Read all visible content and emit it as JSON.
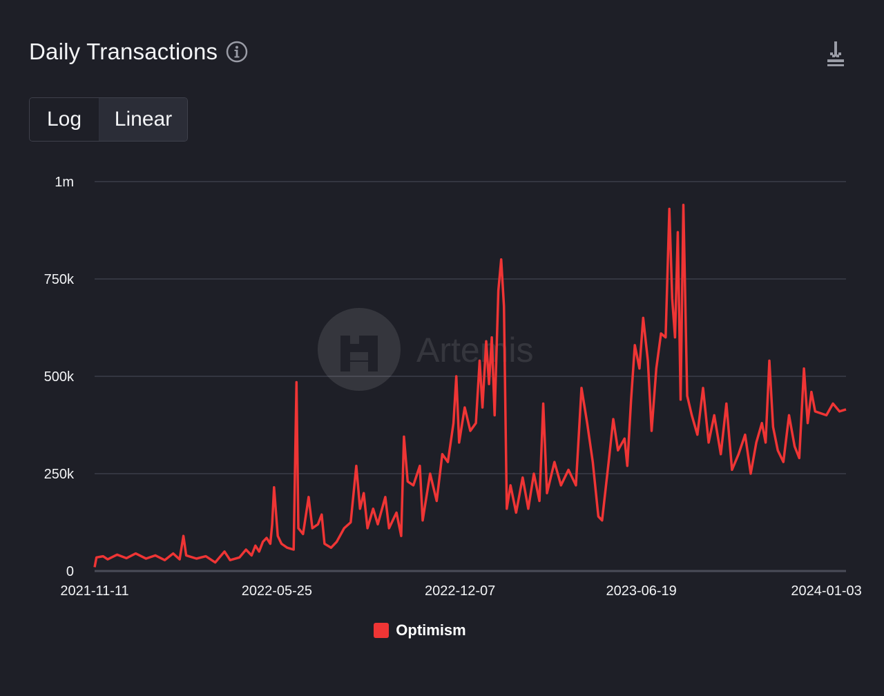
{
  "header": {
    "title": "Daily Transactions",
    "info_icon": "info-circle-icon",
    "download_icon": "download-icon"
  },
  "scale_toggle": {
    "options": [
      "Log",
      "Linear"
    ],
    "selected": "Linear"
  },
  "watermark": {
    "text": "Artemis"
  },
  "colors": {
    "background": "#1e1f27",
    "series": "#ef3535",
    "grid": "#3c3e4a"
  },
  "chart_data": {
    "type": "line",
    "title": "Daily Transactions",
    "xlabel": "",
    "ylabel": "",
    "y_scale": "linear",
    "ylim": [
      0,
      1000000
    ],
    "y_ticks": [
      {
        "value": 0,
        "label": "0"
      },
      {
        "value": 250000,
        "label": "250k"
      },
      {
        "value": 500000,
        "label": "500k"
      },
      {
        "value": 750000,
        "label": "750k"
      },
      {
        "value": 1000000,
        "label": "1m"
      }
    ],
    "x_range": [
      "2021-11-11",
      "2024-01-24"
    ],
    "x_ticks": [
      "2021-11-11",
      "2022-05-25",
      "2022-12-07",
      "2023-06-19",
      "2024-01-03"
    ],
    "grid": "horizontal",
    "legend": "bottom-center",
    "series": [
      {
        "name": "Optimism",
        "color": "#ef3535",
        "points": [
          [
            "2021-11-11",
            10000
          ],
          [
            "2021-11-13",
            35000
          ],
          [
            "2021-11-20",
            38000
          ],
          [
            "2021-11-25",
            30000
          ],
          [
            "2021-12-05",
            42000
          ],
          [
            "2021-12-15",
            33000
          ],
          [
            "2021-12-25",
            45000
          ],
          [
            "2022-01-05",
            32000
          ],
          [
            "2022-01-15",
            40000
          ],
          [
            "2022-01-25",
            28000
          ],
          [
            "2022-02-03",
            45000
          ],
          [
            "2022-02-10",
            30000
          ],
          [
            "2022-02-14",
            90000
          ],
          [
            "2022-02-17",
            40000
          ],
          [
            "2022-02-28",
            32000
          ],
          [
            "2022-03-10",
            38000
          ],
          [
            "2022-03-20",
            22000
          ],
          [
            "2022-03-30",
            50000
          ],
          [
            "2022-04-05",
            28000
          ],
          [
            "2022-04-15",
            35000
          ],
          [
            "2022-04-22",
            55000
          ],
          [
            "2022-04-28",
            40000
          ],
          [
            "2022-05-02",
            65000
          ],
          [
            "2022-05-06",
            50000
          ],
          [
            "2022-05-10",
            75000
          ],
          [
            "2022-05-14",
            85000
          ],
          [
            "2022-05-18",
            70000
          ],
          [
            "2022-05-20",
            120000
          ],
          [
            "2022-05-22",
            215000
          ],
          [
            "2022-05-26",
            90000
          ],
          [
            "2022-05-30",
            70000
          ],
          [
            "2022-06-05",
            60000
          ],
          [
            "2022-06-12",
            55000
          ],
          [
            "2022-06-15",
            485000
          ],
          [
            "2022-06-17",
            110000
          ],
          [
            "2022-06-22",
            95000
          ],
          [
            "2022-06-28",
            190000
          ],
          [
            "2022-07-02",
            110000
          ],
          [
            "2022-07-08",
            120000
          ],
          [
            "2022-07-12",
            145000
          ],
          [
            "2022-07-15",
            70000
          ],
          [
            "2022-07-22",
            60000
          ],
          [
            "2022-07-28",
            75000
          ],
          [
            "2022-08-05",
            110000
          ],
          [
            "2022-08-12",
            125000
          ],
          [
            "2022-08-18",
            270000
          ],
          [
            "2022-08-22",
            160000
          ],
          [
            "2022-08-26",
            200000
          ],
          [
            "2022-08-30",
            110000
          ],
          [
            "2022-09-05",
            160000
          ],
          [
            "2022-09-10",
            120000
          ],
          [
            "2022-09-18",
            190000
          ],
          [
            "2022-09-22",
            110000
          ],
          [
            "2022-09-30",
            150000
          ],
          [
            "2022-10-05",
            90000
          ],
          [
            "2022-10-08",
            345000
          ],
          [
            "2022-10-12",
            230000
          ],
          [
            "2022-10-18",
            220000
          ],
          [
            "2022-10-25",
            270000
          ],
          [
            "2022-10-28",
            130000
          ],
          [
            "2022-11-05",
            250000
          ],
          [
            "2022-11-12",
            180000
          ],
          [
            "2022-11-18",
            300000
          ],
          [
            "2022-11-24",
            280000
          ],
          [
            "2022-11-30",
            380000
          ],
          [
            "2022-12-03",
            500000
          ],
          [
            "2022-12-06",
            330000
          ],
          [
            "2022-12-12",
            420000
          ],
          [
            "2022-12-18",
            360000
          ],
          [
            "2022-12-24",
            380000
          ],
          [
            "2022-12-28",
            540000
          ],
          [
            "2022-12-31",
            420000
          ],
          [
            "2023-01-04",
            590000
          ],
          [
            "2023-01-07",
            480000
          ],
          [
            "2023-01-10",
            600000
          ],
          [
            "2023-01-13",
            400000
          ],
          [
            "2023-01-17",
            720000
          ],
          [
            "2023-01-20",
            800000
          ],
          [
            "2023-01-23",
            680000
          ],
          [
            "2023-01-26",
            160000
          ],
          [
            "2023-01-30",
            220000
          ],
          [
            "2023-02-05",
            150000
          ],
          [
            "2023-02-12",
            240000
          ],
          [
            "2023-02-18",
            160000
          ],
          [
            "2023-02-24",
            250000
          ],
          [
            "2023-03-02",
            180000
          ],
          [
            "2023-03-06",
            430000
          ],
          [
            "2023-03-10",
            200000
          ],
          [
            "2023-03-18",
            280000
          ],
          [
            "2023-03-25",
            220000
          ],
          [
            "2023-04-02",
            260000
          ],
          [
            "2023-04-10",
            220000
          ],
          [
            "2023-04-16",
            470000
          ],
          [
            "2023-04-22",
            380000
          ],
          [
            "2023-04-28",
            280000
          ],
          [
            "2023-05-04",
            140000
          ],
          [
            "2023-05-08",
            130000
          ],
          [
            "2023-05-15",
            280000
          ],
          [
            "2023-05-20",
            390000
          ],
          [
            "2023-05-25",
            310000
          ],
          [
            "2023-06-01",
            340000
          ],
          [
            "2023-06-04",
            270000
          ],
          [
            "2023-06-08",
            440000
          ],
          [
            "2023-06-12",
            580000
          ],
          [
            "2023-06-17",
            520000
          ],
          [
            "2023-06-21",
            650000
          ],
          [
            "2023-06-26",
            540000
          ],
          [
            "2023-06-30",
            360000
          ],
          [
            "2023-07-05",
            520000
          ],
          [
            "2023-07-10",
            610000
          ],
          [
            "2023-07-15",
            600000
          ],
          [
            "2023-07-19",
            930000
          ],
          [
            "2023-07-22",
            700000
          ],
          [
            "2023-07-25",
            600000
          ],
          [
            "2023-07-28",
            870000
          ],
          [
            "2023-07-31",
            440000
          ],
          [
            "2023-08-03",
            940000
          ],
          [
            "2023-08-07",
            450000
          ],
          [
            "2023-08-12",
            400000
          ],
          [
            "2023-08-18",
            350000
          ],
          [
            "2023-08-24",
            470000
          ],
          [
            "2023-08-30",
            330000
          ],
          [
            "2023-09-05",
            400000
          ],
          [
            "2023-09-12",
            300000
          ],
          [
            "2023-09-18",
            430000
          ],
          [
            "2023-09-24",
            260000
          ],
          [
            "2023-10-01",
            300000
          ],
          [
            "2023-10-08",
            350000
          ],
          [
            "2023-10-14",
            250000
          ],
          [
            "2023-10-20",
            330000
          ],
          [
            "2023-10-26",
            380000
          ],
          [
            "2023-10-30",
            330000
          ],
          [
            "2023-11-03",
            540000
          ],
          [
            "2023-11-07",
            370000
          ],
          [
            "2023-11-12",
            310000
          ],
          [
            "2023-11-18",
            280000
          ],
          [
            "2023-11-24",
            400000
          ],
          [
            "2023-11-30",
            320000
          ],
          [
            "2023-12-05",
            290000
          ],
          [
            "2023-12-10",
            520000
          ],
          [
            "2023-12-14",
            380000
          ],
          [
            "2023-12-18",
            460000
          ],
          [
            "2023-12-22",
            410000
          ],
          [
            "2024-01-03",
            400000
          ],
          [
            "2024-01-10",
            430000
          ],
          [
            "2024-01-17",
            410000
          ],
          [
            "2024-01-24",
            415000
          ]
        ]
      }
    ]
  }
}
